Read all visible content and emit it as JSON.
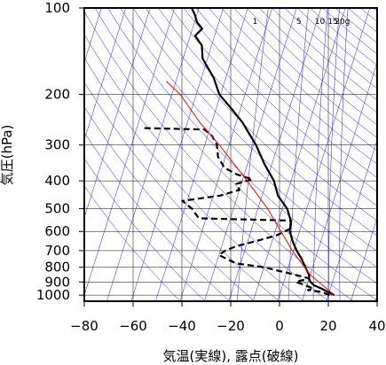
{
  "chart_data": {
    "type": "line",
    "title": "",
    "xlabel": "気温(実線), 露点(破線)",
    "ylabel": "気圧(hPa)",
    "xlim": [
      -80,
      40
    ],
    "ylim": [
      1050,
      100
    ],
    "y_scale": "log",
    "x_ticks": [
      "−80",
      "−60",
      "−40",
      "−20",
      "0",
      "20",
      "40"
    ],
    "x_tick_values": [
      -80,
      -60,
      -40,
      -20,
      0,
      20,
      40
    ],
    "y_ticks": [
      "100",
      "200",
      "300",
      "400",
      "500",
      "600",
      "700",
      "800",
      "900",
      "1000"
    ],
    "y_tick_values": [
      100,
      200,
      300,
      400,
      500,
      600,
      700,
      800,
      900,
      1000
    ],
    "grid": true,
    "skew_deg_per_decade": 37,
    "mixing_ratio_labels": [
      "1",
      "5",
      "10",
      "15",
      "20g"
    ],
    "mixing_ratio_values": [
      1,
      5,
      10,
      15,
      20
    ],
    "series": [
      {
        "role": "temperature",
        "style": "solid",
        "color": "#000000",
        "points": [
          {
            "p": 1000,
            "t": 22.5
          },
          {
            "p": 975,
            "t": 19.5
          },
          {
            "p": 950,
            "t": 16.5
          },
          {
            "p": 925,
            "t": 13
          },
          {
            "p": 900,
            "t": 11
          },
          {
            "p": 875,
            "t": 10
          },
          {
            "p": 850,
            "t": 9.5
          },
          {
            "p": 800,
            "t": 7
          },
          {
            "p": 750,
            "t": 4.5
          },
          {
            "p": 700,
            "t": 1.3
          },
          {
            "p": 650,
            "t": -1.5
          },
          {
            "p": 600,
            "t": -4
          },
          {
            "p": 550,
            "t": -5
          },
          {
            "p": 500,
            "t": -8
          },
          {
            "p": 450,
            "t": -13.5
          },
          {
            "p": 400,
            "t": -17
          },
          {
            "p": 350,
            "t": -23
          },
          {
            "p": 300,
            "t": -29
          },
          {
            "p": 250,
            "t": -37.5
          },
          {
            "p": 225,
            "t": -43.5
          },
          {
            "p": 200,
            "t": -50.5
          },
          {
            "p": 175,
            "t": -55
          },
          {
            "p": 150,
            "t": -62
          },
          {
            "p": 135,
            "t": -64
          },
          {
            "p": 125,
            "t": -68
          },
          {
            "p": 118,
            "t": -66
          },
          {
            "p": 112,
            "t": -69
          },
          {
            "p": 105,
            "t": -71
          },
          {
            "p": 100,
            "t": -73
          }
        ]
      },
      {
        "role": "dewpoint",
        "style": "dashed",
        "color": "#000000",
        "points": [
          {
            "p": 1000,
            "t": 20.5
          },
          {
            "p": 975,
            "t": 17
          },
          {
            "p": 960,
            "t": 11
          },
          {
            "p": 950,
            "t": 13
          },
          {
            "p": 925,
            "t": 9.5
          },
          {
            "p": 900,
            "t": 5
          },
          {
            "p": 875,
            "t": 10
          },
          {
            "p": 850,
            "t": 4
          },
          {
            "p": 800,
            "t": -10
          },
          {
            "p": 775,
            "t": -22
          },
          {
            "p": 725,
            "t": -30
          },
          {
            "p": 700,
            "t": -28
          },
          {
            "p": 675,
            "t": -24
          },
          {
            "p": 650,
            "t": -17
          },
          {
            "p": 620,
            "t": -9
          },
          {
            "p": 600,
            "t": -6
          },
          {
            "p": 585,
            "t": -4
          },
          {
            "p": 550,
            "t": -5
          },
          {
            "p": 540,
            "t": -43
          },
          {
            "p": 500,
            "t": -47
          },
          {
            "p": 470,
            "t": -52
          },
          {
            "p": 450,
            "t": -37
          },
          {
            "p": 430,
            "t": -30
          },
          {
            "p": 410,
            "t": -32
          },
          {
            "p": 395,
            "t": -26
          },
          {
            "p": 380,
            "t": -33
          },
          {
            "p": 360,
            "t": -39
          },
          {
            "p": 330,
            "t": -43
          },
          {
            "p": 300,
            "t": -45
          },
          {
            "p": 280,
            "t": -48
          },
          {
            "p": 265,
            "t": -52
          },
          {
            "p": 262,
            "t": -77
          }
        ]
      },
      {
        "role": "parcel",
        "style": "solid",
        "color": "#ff0000",
        "points": [
          {
            "p": 1000,
            "t": 22.5
          },
          {
            "p": 850,
            "t": 10
          },
          {
            "p": 700,
            "t": -0.5
          },
          {
            "p": 500,
            "t": -16
          },
          {
            "p": 400,
            "t": -28
          },
          {
            "p": 300,
            "t": -44
          },
          {
            "p": 250,
            "t": -55
          },
          {
            "p": 200,
            "t": -66.5
          },
          {
            "p": 180,
            "t": -74
          }
        ]
      }
    ]
  }
}
